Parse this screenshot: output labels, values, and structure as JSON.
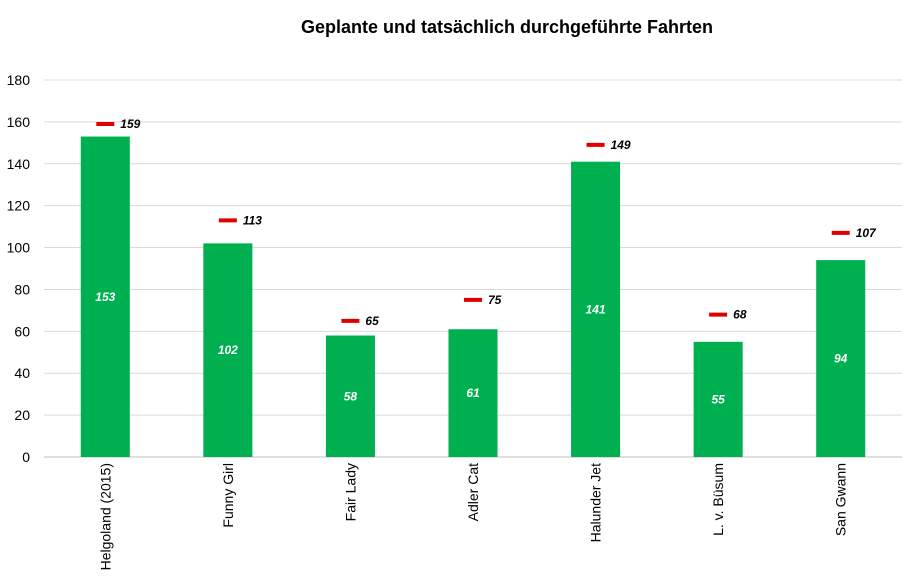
{
  "chart_data": {
    "type": "bar",
    "title": "Geplante und tatsächlich durchgeführte Fahrten",
    "xlabel": "",
    "ylabel": "",
    "ylim": [
      0,
      180
    ],
    "yticks": [
      0,
      20,
      40,
      60,
      80,
      100,
      120,
      140,
      160,
      180
    ],
    "grid": true,
    "categories": [
      "Helgoland (2015)",
      "Funny Girl",
      "Fair Lady",
      "Adler Cat",
      "Halunder Jet",
      "L. v. Büsum",
      "San Gwann"
    ],
    "series": [
      {
        "values": [
          153,
          102,
          58,
          61,
          141,
          55,
          94
        ],
        "color": "#00B050",
        "style": "bar"
      },
      {
        "values": [
          159,
          113,
          65,
          75,
          149,
          68,
          107
        ],
        "color": "#E00000",
        "style": "marker-dash"
      }
    ]
  }
}
